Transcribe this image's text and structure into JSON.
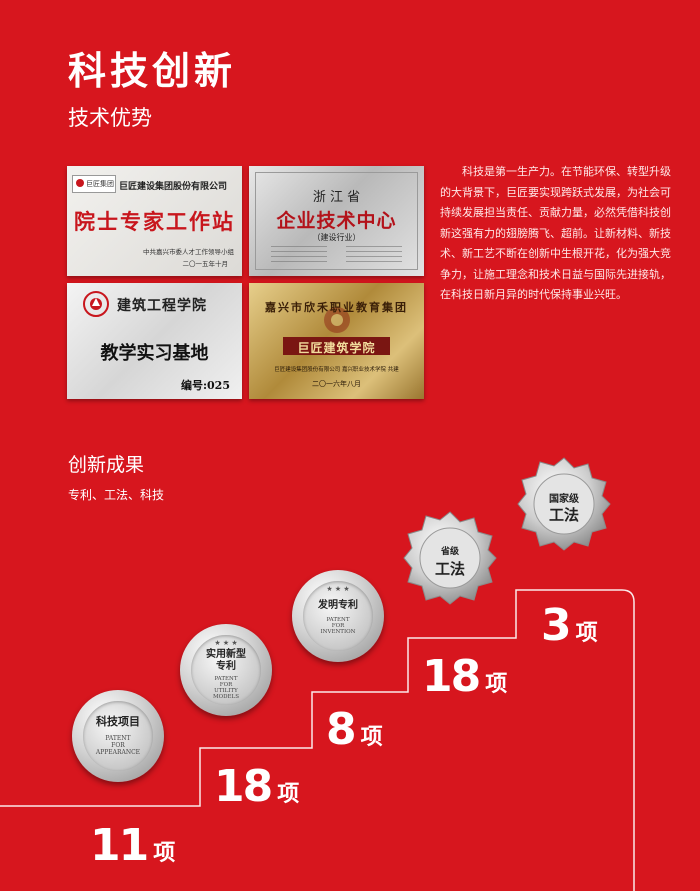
{
  "header": {
    "title": "科技创新",
    "subtitle": "技术优势"
  },
  "plaques": {
    "p1": {
      "org": "巨匠建设集团股份有限公司",
      "logo_text": "巨匠集团",
      "main": "院士专家工作站",
      "issuer": "中共嘉兴市委人才工作领导小组",
      "date": "二〇一五年十月"
    },
    "p2": {
      "province": "浙  江  省",
      "main": "企业技术中心",
      "sub": "（建设行业）"
    },
    "p3": {
      "college": "建筑工程学院",
      "main": "教学实习基地",
      "number": "编号:025"
    },
    "p4": {
      "arc": "嘉兴市欣禾职业教育集团",
      "main": "巨匠建筑学院",
      "line": "巨匠建设集团股份有限公司   嘉兴职业技术学院   共建",
      "date": "二〇一六年八月"
    }
  },
  "description": "科技是第一生产力。在节能环保、转型升级的大背景下，巨匠要实现跨跃式发展，为社会可持续发展担当责任、贡献力量，必然凭借科技创新这强有力的翅膀腾飞、超前。让新材料、新技术、新工艺不断在创新中生根开花，化为强大竞争力，让施工理念和技术日益与国际先进接轨，在科技日新月异的时代保持事业兴旺。",
  "results": {
    "title": "创新成果",
    "subtitle": "专利、工法、科技",
    "steps": [
      {
        "count": "11",
        "unit": "项"
      },
      {
        "count": "18",
        "unit": "项",
        "medal_cn": "科技项目",
        "medal_en": [
          "PATENT",
          "FOR",
          "APPEARANCE"
        ]
      },
      {
        "count": "8",
        "unit": "项",
        "medal_cn": "实用新型专利",
        "medal_en": [
          "PATENT",
          "FOR",
          "UTILITY",
          "MODELS"
        ]
      },
      {
        "count": "18",
        "unit": "项",
        "medal_cn": "发明专利",
        "medal_en": [
          "PATENT",
          "FOR",
          "INVENTION"
        ]
      },
      {
        "count": "3",
        "unit": "项",
        "medal_cn1": "省级",
        "medal_cn2": "工法"
      }
    ],
    "national": {
      "line1": "国家级",
      "line2": "工法"
    }
  },
  "colors": {
    "background": "#d7161e",
    "text": "#ffffff"
  }
}
